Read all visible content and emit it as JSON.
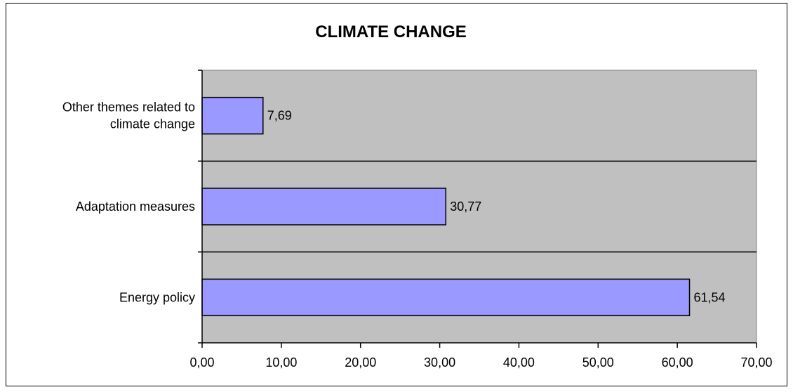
{
  "chart_data": {
    "type": "bar",
    "orientation": "horizontal",
    "title": "CLIMATE CHANGE",
    "categories": [
      [
        "Other themes related to",
        "climate change"
      ],
      [
        "Adaptation measures"
      ],
      [
        "Energy policy"
      ]
    ],
    "values": [
      7.69,
      30.77,
      61.54
    ],
    "value_labels": [
      "7,69",
      "30,77",
      "61,54"
    ],
    "xlim": [
      0,
      70
    ],
    "x_ticks": [
      0,
      10,
      20,
      30,
      40,
      50,
      60,
      70
    ],
    "x_tick_labels": [
      "0,00",
      "10,00",
      "20,00",
      "30,00",
      "40,00",
      "50,00",
      "60,00",
      "70,00"
    ],
    "xlabel": "",
    "ylabel": "",
    "grid": "horizontal category separators",
    "legend": "none",
    "colors": {
      "bar_fill": "#9999ff",
      "bar_stroke": "#000000",
      "plot_background": "#c0c0c0",
      "separator": "#000000"
    }
  }
}
